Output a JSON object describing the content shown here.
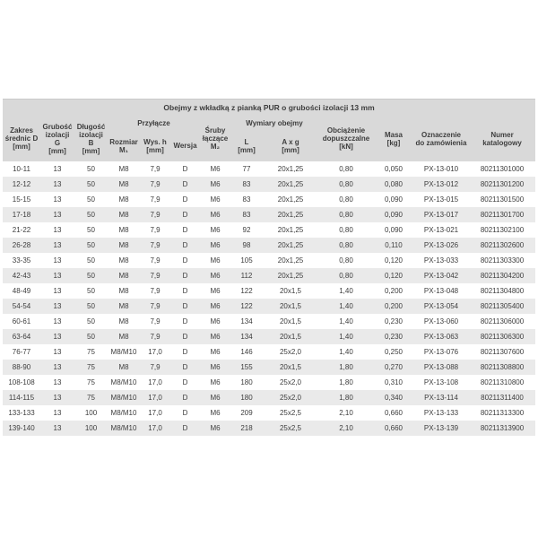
{
  "table": {
    "title": "Obejmy z wkładką z pianką PUR o grubości izolacji 13 mm",
    "colors": {
      "header_bg": "#d9d9d9",
      "row_alt_bg": "#eaeaea",
      "row_bg": "#ffffff",
      "text": "#3d3d3d",
      "top_rule": "#c9c9c9"
    },
    "columns": {
      "zakres": "Zakres\nśrednic D\n[mm]",
      "grubosc": "Grubość\nizolacji\nG\n[mm]",
      "dlugosc": "Długość\nizolacji\nB\n[mm]",
      "przylacze_group": "Przyłącze",
      "rozmiar": "Rozmiar\nM₁",
      "wys_h": "Wys. h\n[mm]",
      "wersja": "Wersja",
      "sruby": "Śruby\nłączące\nM₂",
      "wymiary_group": "Wymiary obejmy",
      "l": "L\n[mm]",
      "axg": "A x g\n[mm]",
      "obciazenie": "Obciążenie\ndopuszczalne\n[kN]",
      "masa": "Masa\n[kg]",
      "oznaczenie": "Oznaczenie\ndo zamówienia",
      "numer": "Numer\nkatalogowy"
    },
    "rows": [
      [
        "10-11",
        "13",
        "50",
        "M8",
        "7,9",
        "D",
        "M6",
        "77",
        "20x1,25",
        "0,80",
        "0,050",
        "PX-13-010",
        "80211301000"
      ],
      [
        "12-12",
        "13",
        "50",
        "M8",
        "7,9",
        "D",
        "M6",
        "83",
        "20x1,25",
        "0,80",
        "0,080",
        "PX-13-012",
        "80211301200"
      ],
      [
        "15-15",
        "13",
        "50",
        "M8",
        "7,9",
        "D",
        "M6",
        "83",
        "20x1,25",
        "0,80",
        "0,090",
        "PX-13-015",
        "80211301500"
      ],
      [
        "17-18",
        "13",
        "50",
        "M8",
        "7,9",
        "D",
        "M6",
        "83",
        "20x1,25",
        "0,80",
        "0,090",
        "PX-13-017",
        "80211301700"
      ],
      [
        "21-22",
        "13",
        "50",
        "M8",
        "7,9",
        "D",
        "M6",
        "92",
        "20x1,25",
        "0,80",
        "0,090",
        "PX-13-021",
        "80211302100"
      ],
      [
        "26-28",
        "13",
        "50",
        "M8",
        "7,9",
        "D",
        "M6",
        "98",
        "20x1,25",
        "0,80",
        "0,110",
        "PX-13-026",
        "80211302600"
      ],
      [
        "33-35",
        "13",
        "50",
        "M8",
        "7,9",
        "D",
        "M6",
        "105",
        "20x1,25",
        "0,80",
        "0,120",
        "PX-13-033",
        "80211303300"
      ],
      [
        "42-43",
        "13",
        "50",
        "M8",
        "7,9",
        "D",
        "M6",
        "112",
        "20x1,25",
        "0,80",
        "0,120",
        "PX-13-042",
        "80211304200"
      ],
      [
        "48-49",
        "13",
        "50",
        "M8",
        "7,9",
        "D",
        "M6",
        "122",
        "20x1,5",
        "1,40",
        "0,200",
        "PX-13-048",
        "80211304800"
      ],
      [
        "54-54",
        "13",
        "50",
        "M8",
        "7,9",
        "D",
        "M6",
        "122",
        "20x1,5",
        "1,40",
        "0,200",
        "PX-13-054",
        "80211305400"
      ],
      [
        "60-61",
        "13",
        "50",
        "M8",
        "7,9",
        "D",
        "M6",
        "134",
        "20x1,5",
        "1,40",
        "0,230",
        "PX-13-060",
        "80211306000"
      ],
      [
        "63-64",
        "13",
        "50",
        "M8",
        "7,9",
        "D",
        "M6",
        "134",
        "20x1,5",
        "1,40",
        "0,230",
        "PX-13-063",
        "80211306300"
      ],
      [
        "76-77",
        "13",
        "75",
        "M8/M10",
        "17,0",
        "D",
        "M6",
        "146",
        "25x2,0",
        "1,40",
        "0,250",
        "PX-13-076",
        "80211307600"
      ],
      [
        "88-90",
        "13",
        "75",
        "M8",
        "7,9",
        "D",
        "M6",
        "155",
        "20x1,5",
        "1,80",
        "0,270",
        "PX-13-088",
        "80211308800"
      ],
      [
        "108-108",
        "13",
        "75",
        "M8/M10",
        "17,0",
        "D",
        "M6",
        "180",
        "25x2,0",
        "1,80",
        "0,310",
        "PX-13-108",
        "80211310800"
      ],
      [
        "114-115",
        "13",
        "75",
        "M8/M10",
        "17,0",
        "D",
        "M6",
        "180",
        "25x2,0",
        "1,80",
        "0,340",
        "PX-13-114",
        "80211311400"
      ],
      [
        "133-133",
        "13",
        "100",
        "M8/M10",
        "17,0",
        "D",
        "M6",
        "209",
        "25x2,5",
        "2,10",
        "0,660",
        "PX-13-133",
        "80211313300"
      ],
      [
        "139-140",
        "13",
        "100",
        "M8/M10",
        "17,0",
        "D",
        "M6",
        "218",
        "25x2,5",
        "2,10",
        "0,660",
        "PX-13-139",
        "80211313900"
      ]
    ]
  }
}
